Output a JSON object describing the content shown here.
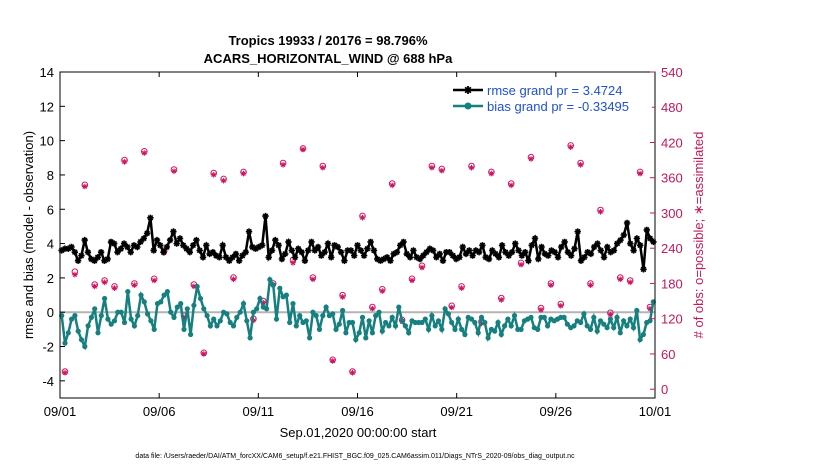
{
  "chart_data": {
    "type": "line",
    "title_line1": "Tropics 19933 / 20176 = 98.796%",
    "title_line2": "ACARS_HORIZONTAL_WIND @ 688 hPa",
    "xlabel": "Sep.01,2020 00:00:00 start",
    "ylabel_left": "rmse and bias (model - observation)",
    "ylabel_right": "# of obs: o=possible; ∗=assimilated",
    "footer": "data file: /Users/raeder/DAI/ATM_forcXX/CAM6_setup/f.e21.FHIST_BGC.f09_025.CAM6assim.011/Diags_NTrS_2020-09/obs_diag_output.nc",
    "x_tick_labels": [
      "09/01",
      "09/06",
      "09/11",
      "09/16",
      "09/21",
      "09/26",
      "10/01"
    ],
    "x_tick_days": [
      0,
      5,
      10,
      15,
      20,
      25,
      30
    ],
    "xlim": [
      0,
      30
    ],
    "ylim_left": [
      -5,
      14
    ],
    "y_ticks_left": [
      -4,
      -2,
      0,
      2,
      4,
      6,
      8,
      10,
      12,
      14
    ],
    "ylim_right": [
      -15,
      540
    ],
    "y_ticks_right": [
      0,
      60,
      120,
      180,
      240,
      300,
      360,
      420,
      480,
      540
    ],
    "legend": [
      {
        "label": "rmse grand pr = 3.4724",
        "color": "#000000"
      },
      {
        "label": "bias grand pr = -0.33495",
        "color": "#15807f"
      }
    ],
    "colors": {
      "rmse": "#000000",
      "bias": "#15807f",
      "obs": "#d0135f",
      "zero_line": "#b4b4b4",
      "right_axis": "#c2185b"
    },
    "series": [
      {
        "name": "rmse",
        "values": [
          3.6,
          3.7,
          3.7,
          3.8,
          3.5,
          3.0,
          3.3,
          4.2,
          3.5,
          3.1,
          3.0,
          3.2,
          3.5,
          3.0,
          3.1,
          4.1,
          4.0,
          3.5,
          3.7,
          4.0,
          3.8,
          3.5,
          3.9,
          3.8,
          4.1,
          4.3,
          4.6,
          5.5,
          3.6,
          4.2,
          3.9,
          3.5,
          3.8,
          4.2,
          4.7,
          4.0,
          4.3,
          3.9,
          3.7,
          3.5,
          3.9,
          4.2,
          3.6,
          3.2,
          3.9,
          3.4,
          3.5,
          3.3,
          3.2,
          3.9,
          3.2,
          3.0,
          3.2,
          3.4,
          3.0,
          3.3,
          3.5,
          4.7,
          3.8,
          3.7,
          3.8,
          3.9,
          5.6,
          3.2,
          3.6,
          4.2,
          3.9,
          3.1,
          3.4,
          4.1,
          3.6,
          3.2,
          3.7,
          3.5,
          3.0,
          3.6,
          4.1,
          3.6,
          3.8,
          3.3,
          3.5,
          4.0,
          3.2,
          3.9,
          3.8,
          3.5,
          3.0,
          3.6,
          3.6,
          3.3,
          3.9,
          3.6,
          3.3,
          3.7,
          4.1,
          3.6,
          3.1,
          3.0,
          3.1,
          3.2,
          3.0,
          3.4,
          3.5,
          3.9,
          4.1,
          3.4,
          3.2,
          3.6,
          3.2,
          3.1,
          3.3,
          3.5,
          3.7,
          3.6,
          3.2,
          3.4,
          3.0,
          3.5,
          3.5,
          3.3,
          3.1,
          3.2,
          3.8,
          3.4,
          3.6,
          3.3,
          3.6,
          3.5,
          3.9,
          3.2,
          3.1,
          3.6,
          3.4,
          3.2,
          3.9,
          3.5,
          3.3,
          3.5,
          4.0,
          3.6,
          3.3,
          3.5,
          3.0,
          3.9,
          4.3,
          3.1,
          3.8,
          3.4,
          3.3,
          3.6,
          3.5,
          3.2,
          3.8,
          4.1,
          3.5,
          3.3,
          3.7,
          4.7,
          3.0,
          3.2,
          3.5,
          3.4,
          3.8,
          4.0,
          3.6,
          3.2,
          3.8,
          3.5,
          3.6,
          4.0,
          4.2,
          4.5,
          5.2,
          4.0,
          3.6,
          4.3,
          3.9,
          2.5,
          4.8,
          4.3,
          4.1
        ]
      },
      {
        "name": "bias",
        "values": [
          -0.2,
          -1.8,
          -1.2,
          -0.4,
          -0.2,
          -1.1,
          -1.6,
          -2.0,
          -0.8,
          -0.3,
          0.2,
          -1.2,
          -0.2,
          0.8,
          -0.4,
          -0.7,
          -0.5,
          0.0,
          0.0,
          -0.6,
          1.2,
          -0.4,
          -0.8,
          -0.2,
          1.0,
          0.6,
          -0.1,
          -0.5,
          -1.0,
          0.5,
          0.6,
          1.0,
          1.2,
          0.0,
          -0.3,
          0.3,
          0.5,
          -1.0,
          0.2,
          -1.3,
          0.4,
          1.5,
          0.8,
          0.2,
          -0.2,
          -0.8,
          -0.4,
          -0.8,
          -0.5,
          0.0,
          -0.1,
          -0.6,
          -0.8,
          -0.3,
          0.0,
          0.5,
          -0.5,
          -1.5,
          0.0,
          0.2,
          0.8,
          0.3,
          0.2,
          1.9,
          1.6,
          -0.4,
          1.4,
          0.9,
          1.0,
          -0.6,
          0.5,
          -0.8,
          -0.2,
          -0.6,
          -0.5,
          -1.5,
          0.0,
          -0.2,
          -1.0,
          -0.2,
          0.3,
          -0.2,
          -0.1,
          -1.0,
          -0.7,
          0.1,
          -1.2,
          -0.6,
          -0.6,
          -1.6,
          -1.2,
          -0.3,
          -1.5,
          -0.5,
          -1.2,
          -0.2,
          0.0,
          -1.1,
          -0.6,
          -0.8,
          -0.3,
          -0.8,
          0.3,
          -0.5,
          -0.8,
          -1.2,
          -0.5,
          -0.6,
          -0.6,
          -0.6,
          -0.4,
          -1.0,
          -0.2,
          -0.8,
          -0.5,
          -1.0,
          0.2,
          -0.1,
          -0.6,
          -1.0,
          -0.4,
          -1.0,
          -1.3,
          -0.3,
          -0.4,
          -0.6,
          -1.2,
          -0.3,
          -0.6,
          -1.5,
          -1.0,
          -1.1,
          -0.6,
          -1.3,
          -0.8,
          -0.4,
          -0.8,
          -0.2,
          -1.0,
          -1.0,
          -0.5,
          -0.4,
          -0.3,
          -0.9,
          -1.0,
          -0.3,
          -0.3,
          -0.8,
          -0.4,
          -0.5,
          -0.4,
          -0.3,
          -0.3,
          -0.7,
          -0.9,
          -0.8,
          -0.5,
          -0.6,
          -0.1,
          -0.8,
          -1.0,
          -0.3,
          -1.1,
          -0.5,
          -0.7,
          -0.9,
          -0.4,
          -0.9,
          -0.3,
          -1.2,
          -0.5,
          -0.8,
          -0.4,
          -0.9,
          0.1,
          -1.6,
          -1.3,
          -0.6,
          -0.5,
          0.6
        ]
      },
      {
        "name": "obs_possible",
        "values": [
          30,
          200,
          348,
          178,
          185,
          175,
          390,
          180,
          405,
          188,
          235,
          374,
          125,
          178,
          62,
          368,
          358,
          190,
          370,
          120,
          150,
          180,
          385,
          220,
          410,
          190,
          380,
          50,
          160,
          30,
          295,
          140,
          170,
          350,
          118,
          188,
          210,
          380,
          375,
          142,
          175,
          380,
          115,
          370,
          155,
          350,
          215,
          395,
          138,
          180,
          145,
          415,
          385,
          180,
          305,
          130,
          190,
          185,
          370,
          140
        ]
      },
      {
        "name": "obs_assimilated",
        "values": [
          28,
          195,
          345,
          175,
          182,
          172,
          387,
          177,
          402,
          185,
          232,
          371,
          122,
          175,
          60,
          365,
          355,
          187,
          367,
          117,
          147,
          177,
          382,
          215,
          408,
          187,
          377,
          48,
          157,
          28,
          292,
          137,
          167,
          347,
          115,
          185,
          207,
          377,
          372,
          139,
          172,
          377,
          112,
          367,
          152,
          347,
          212,
          392,
          135,
          177,
          142,
          412,
          382,
          177,
          302,
          127,
          187,
          182,
          367,
          137
        ]
      }
    ]
  }
}
